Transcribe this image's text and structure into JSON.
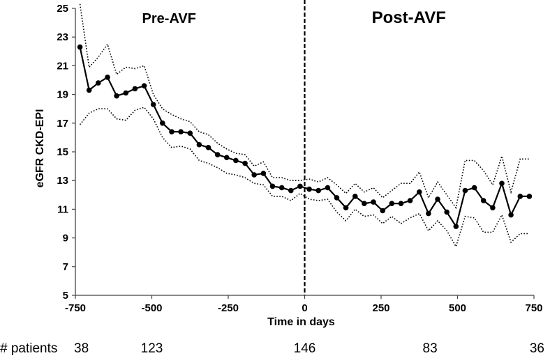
{
  "chart_data": {
    "type": "line",
    "xlabel": "Time in days",
    "ylabel": "eGFR CKD-EPI",
    "xlim": [
      -750,
      750
    ],
    "ylim": [
      5,
      25
    ],
    "x_ticks": [
      -750,
      -500,
      -250,
      0,
      250,
      500,
      750
    ],
    "y_ticks": [
      5,
      7,
      9,
      11,
      13,
      15,
      17,
      19,
      21,
      23,
      25
    ],
    "divider": {
      "x": 0,
      "style": "dashed"
    },
    "annotations": [
      {
        "text": "Pre-AVF",
        "x": -375,
        "y": 24.6
      },
      {
        "text": "Post-AVF",
        "x": 375,
        "y": 24.6
      }
    ],
    "patients": {
      "label": "# patients",
      "entries": [
        {
          "x": -750,
          "count": "38"
        },
        {
          "x": -500,
          "count": "123"
        },
        {
          "x": 0,
          "count": "146"
        },
        {
          "x": 410,
          "count": "83"
        },
        {
          "x": 750,
          "count": "36"
        }
      ]
    },
    "series": [
      {
        "name": "mean eGFR",
        "style": "solid-markers",
        "x": [
          -735,
          -705,
          -675,
          -645,
          -615,
          -585,
          -555,
          -525,
          -495,
          -465,
          -435,
          -405,
          -375,
          -345,
          -315,
          -285,
          -255,
          -225,
          -195,
          -165,
          -135,
          -105,
          -75,
          -45,
          -15,
          15,
          45,
          75,
          105,
          135,
          165,
          195,
          225,
          255,
          285,
          315,
          345,
          375,
          405,
          435,
          465,
          495,
          525,
          555,
          585,
          615,
          645,
          675,
          705,
          735
        ],
        "values": [
          22.3,
          19.3,
          19.8,
          20.2,
          18.9,
          19.1,
          19.4,
          19.6,
          18.3,
          17.0,
          16.4,
          16.4,
          16.3,
          15.5,
          15.3,
          14.8,
          14.6,
          14.4,
          14.2,
          13.4,
          13.5,
          12.6,
          12.5,
          12.3,
          12.6,
          12.4,
          12.3,
          12.5,
          11.8,
          11.1,
          11.9,
          11.4,
          11.5,
          10.9,
          11.4,
          11.4,
          11.6,
          12.2,
          10.7,
          11.7,
          10.8,
          9.8,
          12.3,
          12.5,
          11.6,
          11.1,
          12.8,
          10.6,
          11.9,
          11.9
        ]
      },
      {
        "name": "upper bound",
        "style": "dotted",
        "x": [
          -735,
          -705,
          -675,
          -645,
          -615,
          -585,
          -555,
          -525,
          -495,
          -465,
          -435,
          -405,
          -375,
          -345,
          -315,
          -285,
          -255,
          -225,
          -195,
          -165,
          -135,
          -105,
          -75,
          -45,
          -15,
          15,
          45,
          75,
          105,
          135,
          165,
          195,
          225,
          255,
          285,
          315,
          345,
          375,
          405,
          435,
          465,
          495,
          525,
          555,
          585,
          615,
          645,
          675,
          705,
          735
        ],
        "values": [
          25.3,
          20.9,
          21.6,
          22.5,
          20.4,
          20.9,
          20.8,
          21.0,
          19.0,
          18.0,
          17.6,
          17.3,
          17.1,
          16.4,
          16.2,
          15.6,
          15.2,
          14.9,
          14.8,
          14.0,
          14.3,
          13.2,
          13.2,
          13.0,
          13.0,
          13.1,
          12.9,
          13.2,
          12.7,
          12.1,
          12.8,
          12.2,
          12.5,
          11.8,
          12.3,
          12.8,
          12.8,
          13.6,
          11.8,
          12.9,
          12.0,
          11.1,
          14.4,
          14.4,
          13.7,
          12.7,
          14.7,
          12.2,
          14.5,
          14.5
        ]
      },
      {
        "name": "lower bound",
        "style": "dotted",
        "x": [
          -735,
          -705,
          -675,
          -645,
          -615,
          -585,
          -555,
          -525,
          -495,
          -465,
          -435,
          -405,
          -375,
          -345,
          -315,
          -285,
          -255,
          -225,
          -195,
          -165,
          -135,
          -105,
          -75,
          -45,
          -15,
          15,
          45,
          75,
          105,
          135,
          165,
          195,
          225,
          255,
          285,
          315,
          345,
          375,
          405,
          435,
          465,
          495,
          525,
          555,
          585,
          615,
          645,
          675,
          705,
          735
        ],
        "values": [
          16.9,
          17.7,
          18.0,
          18.0,
          17.3,
          17.2,
          17.9,
          18.1,
          17.3,
          16.0,
          15.3,
          15.4,
          15.2,
          14.4,
          14.2,
          13.9,
          13.5,
          13.4,
          13.2,
          12.8,
          12.7,
          11.9,
          11.9,
          11.6,
          12.1,
          11.7,
          11.6,
          11.7,
          10.8,
          10.2,
          11.0,
          10.5,
          10.6,
          10.0,
          10.5,
          10.0,
          10.4,
          10.7,
          9.5,
          10.2,
          9.5,
          8.4,
          10.5,
          10.4,
          9.4,
          9.4,
          10.6,
          8.7,
          9.3,
          9.3
        ]
      }
    ]
  }
}
